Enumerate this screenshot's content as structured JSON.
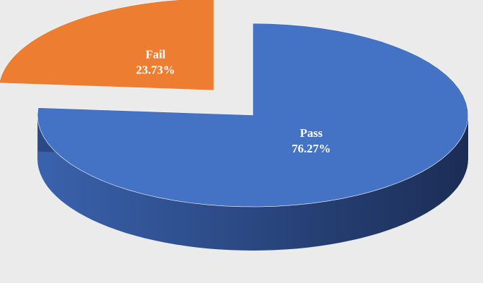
{
  "chart_data": {
    "type": "pie3d",
    "categories": [
      "Pass",
      "Fail"
    ],
    "values": [
      76.27,
      23.73
    ],
    "value_labels": [
      "76.27%",
      "23.73%"
    ],
    "colors": [
      "#4472c4",
      "#ed7d31"
    ],
    "side_colors": [
      "#2a4a85",
      "#5c3510"
    ],
    "exploded": [
      false,
      true
    ]
  }
}
